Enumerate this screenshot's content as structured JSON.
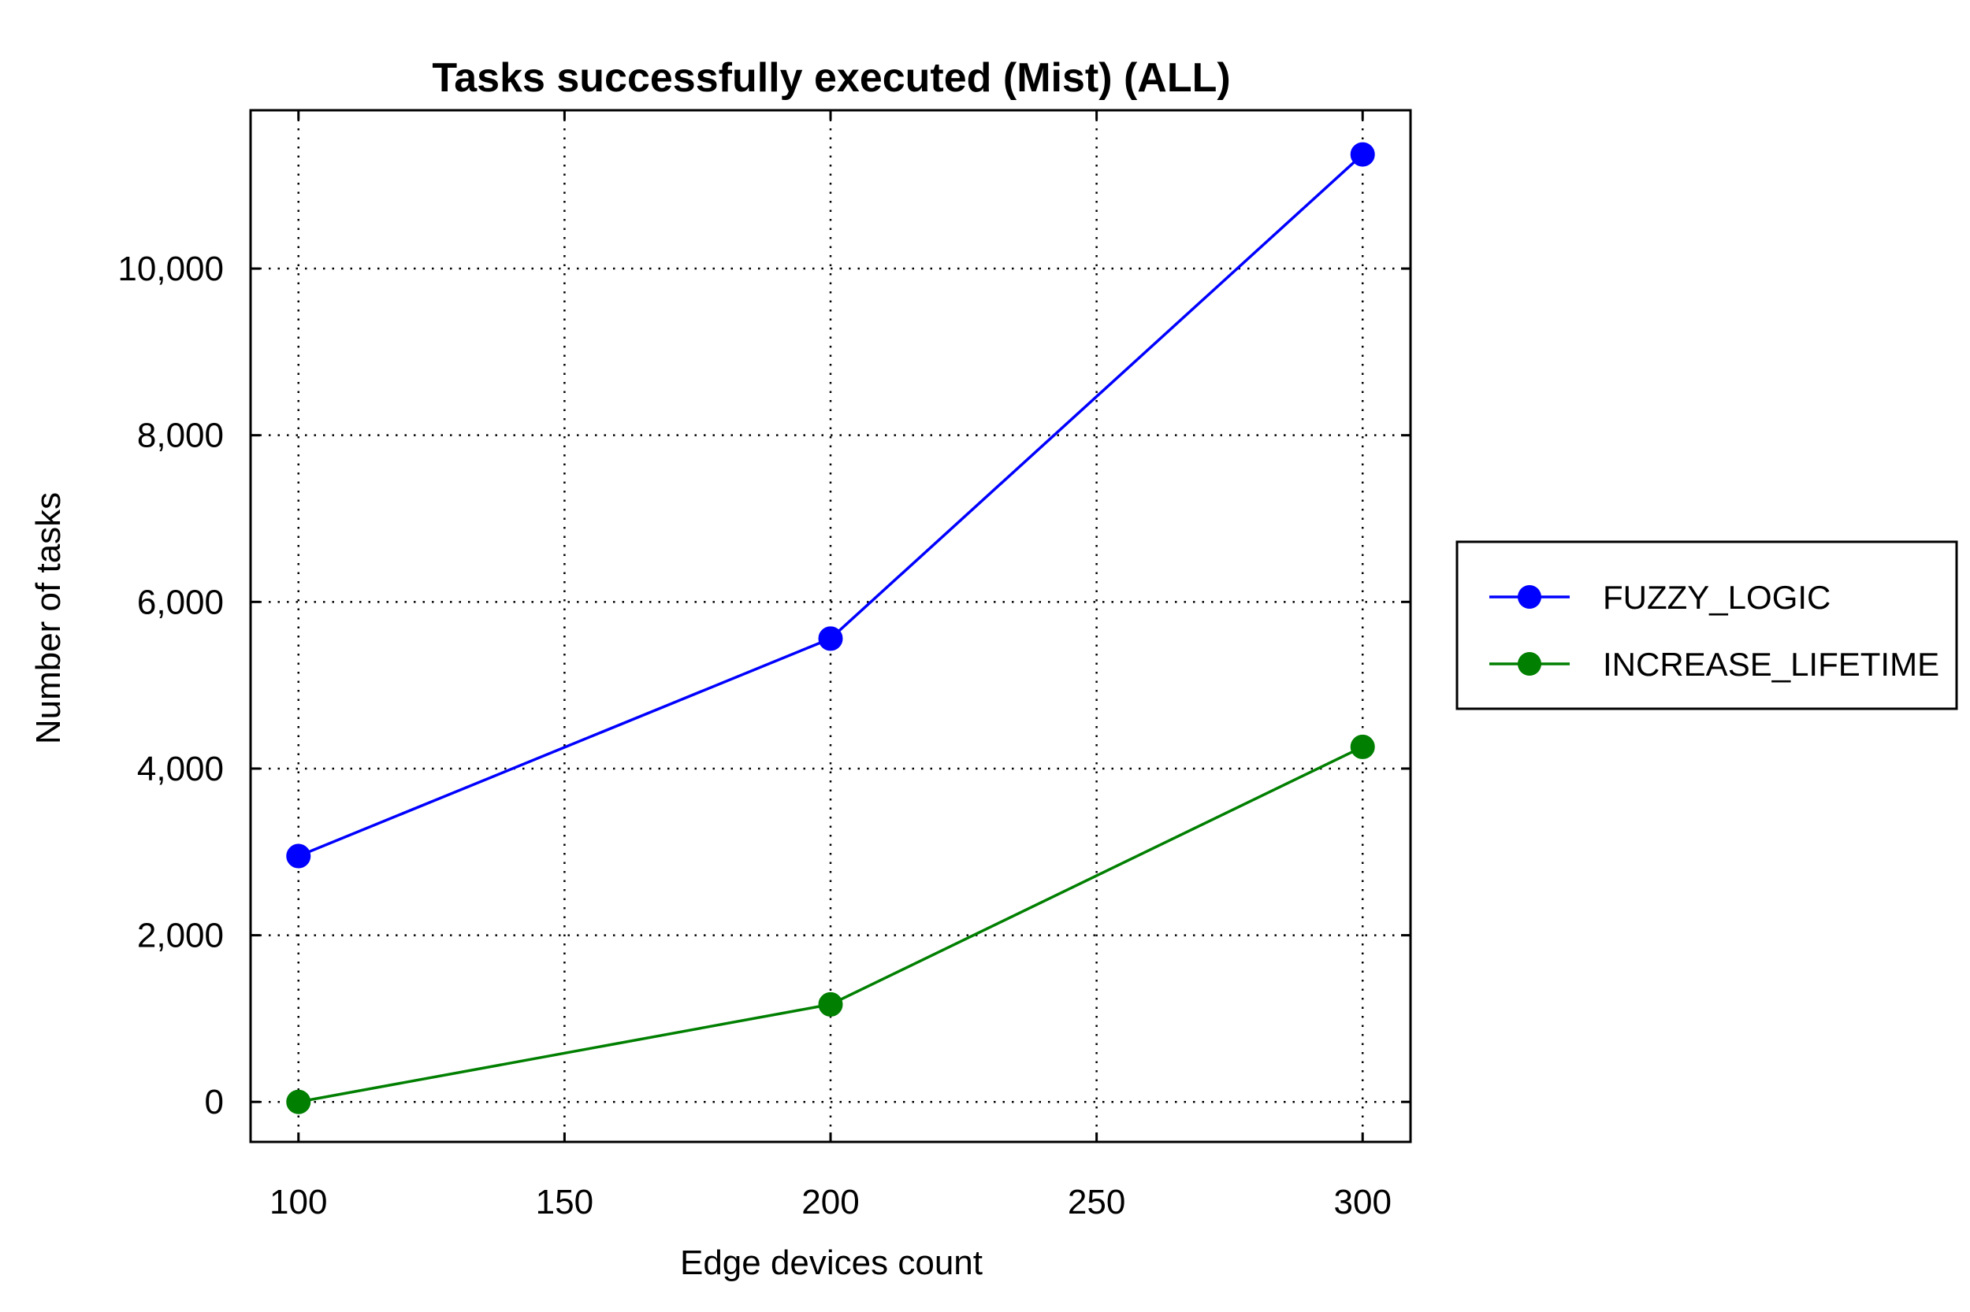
{
  "chart_data": {
    "type": "line",
    "title": "Tasks successfully executed (Mist) (ALL)",
    "xlabel": "Edge devices count",
    "ylabel": "Number of tasks",
    "x": [
      100,
      200,
      300
    ],
    "x_ticks": [
      100,
      150,
      200,
      250,
      300
    ],
    "x_tick_labels": [
      "100",
      "150",
      "200",
      "250",
      "300"
    ],
    "xlim": [
      91,
      309
    ],
    "y_ticks": [
      0,
      2000,
      4000,
      6000,
      8000,
      10000
    ],
    "y_tick_labels": [
      "0",
      "2,000",
      "4,000",
      "6,000",
      "8,000",
      "10,000"
    ],
    "ylim": [
      -480,
      11900
    ],
    "grid": true,
    "legend_position": "right",
    "series": [
      {
        "name": "FUZZY_LOGIC",
        "color": "#0000ff",
        "marker": "circle",
        "values": [
          2950,
          5560,
          11370
        ]
      },
      {
        "name": "INCREASE_LIFETIME",
        "color": "#007f00",
        "marker": "circle",
        "values": [
          0,
          1170,
          4260
        ]
      }
    ]
  }
}
